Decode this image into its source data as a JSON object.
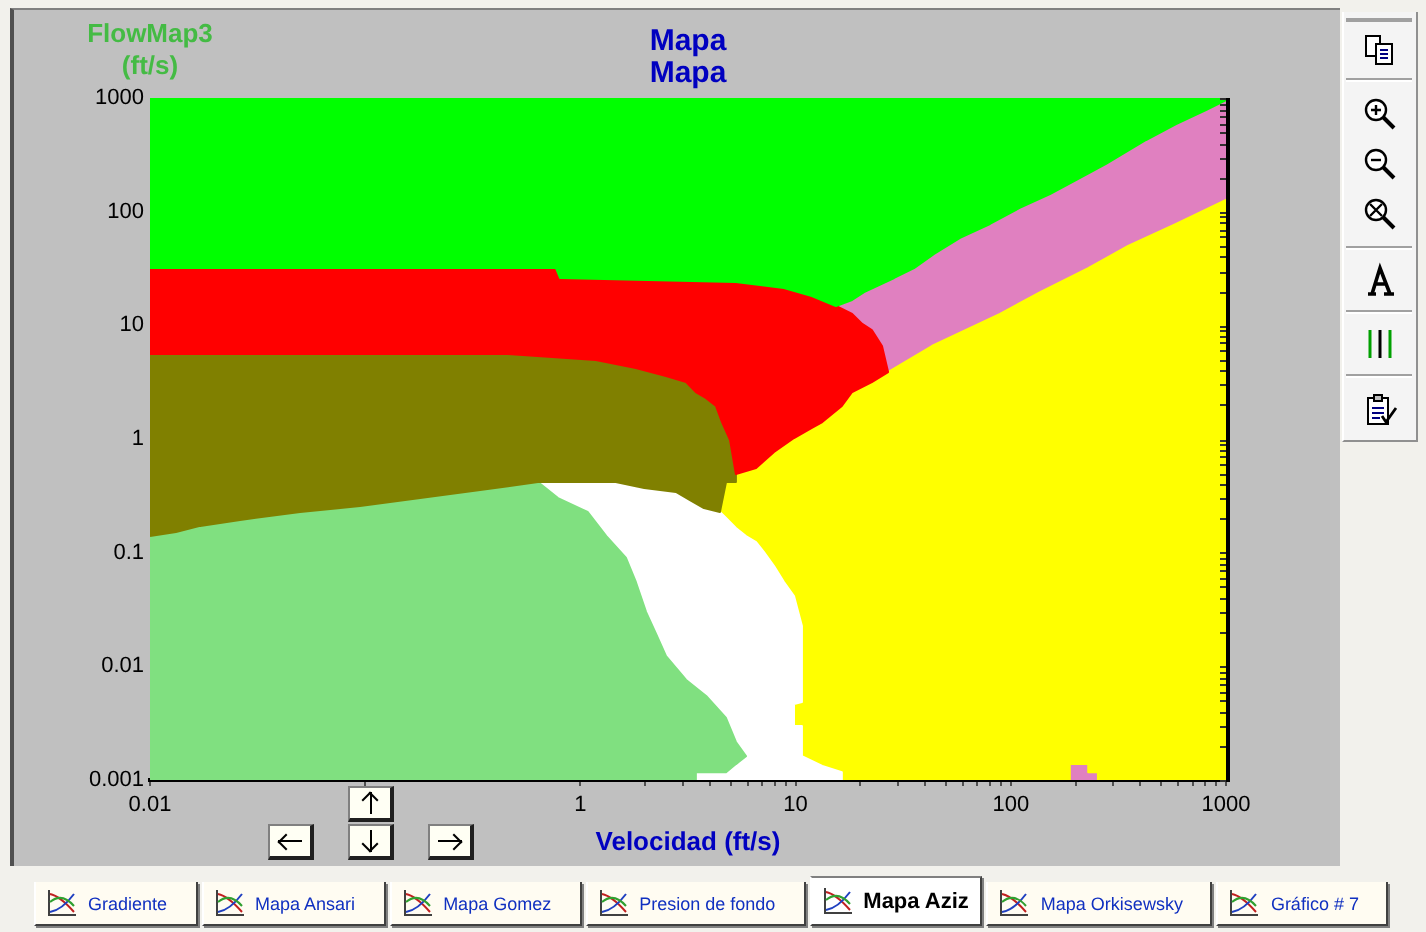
{
  "chart_data": {
    "type": "area",
    "title": "Mapa",
    "subtitle": "Mapa",
    "xlabel": "Velocidad (ft/s)",
    "ylabel": "FlowMap3 (ft/s)",
    "log": "xy",
    "xlim": [
      0.01,
      1000
    ],
    "ylim": [
      0.001,
      1000
    ],
    "xticks": [
      0.01,
      {
        "value": 0.1,
        "label": null
      },
      1,
      {
        "value": 2,
        "label": null
      },
      {
        "value": 3,
        "label": null
      },
      {
        "value": 4,
        "label": null
      },
      {
        "value": 5,
        "label": null
      },
      {
        "value": 6,
        "label": null
      },
      {
        "value": 7,
        "label": null
      },
      {
        "value": 8,
        "label": null
      },
      {
        "value": 9,
        "label": null
      },
      10,
      {
        "value": 20,
        "label": null
      },
      {
        "value": 30,
        "label": null
      },
      {
        "value": 40,
        "label": null
      },
      {
        "value": 50,
        "label": null
      },
      {
        "value": 60,
        "label": null
      },
      {
        "value": 70,
        "label": null
      },
      {
        "value": 80,
        "label": null
      },
      {
        "value": 90,
        "label": null
      },
      100,
      {
        "value": 200,
        "label": null
      },
      {
        "value": 300,
        "label": null
      },
      {
        "value": 400,
        "label": null
      },
      {
        "value": 500,
        "label": null
      },
      {
        "value": 600,
        "label": null
      },
      {
        "value": 700,
        "label": null
      },
      {
        "value": 800,
        "label": null
      },
      {
        "value": 900,
        "label": null
      },
      1000
    ],
    "yticks": [
      0.001,
      {
        "value": 0.002,
        "label": null
      },
      {
        "value": 0.003,
        "label": null
      },
      {
        "value": 0.004,
        "label": null
      },
      {
        "value": 0.005,
        "label": null
      },
      {
        "value": 0.006,
        "label": null
      },
      {
        "value": 0.007,
        "label": null
      },
      {
        "value": 0.008,
        "label": null
      },
      {
        "value": 0.009,
        "label": null
      },
      0.01,
      {
        "value": 0.02,
        "label": null
      },
      {
        "value": 0.03,
        "label": null
      },
      {
        "value": 0.04,
        "label": null
      },
      {
        "value": 0.05,
        "label": null
      },
      {
        "value": 0.06,
        "label": null
      },
      {
        "value": 0.07,
        "label": null
      },
      {
        "value": 0.08,
        "label": null
      },
      {
        "value": 0.09,
        "label": null
      },
      0.1,
      {
        "value": 0.2,
        "label": null
      },
      {
        "value": 0.3,
        "label": null
      },
      {
        "value": 0.4,
        "label": null
      },
      {
        "value": 0.5,
        "label": null
      },
      {
        "value": 0.6,
        "label": null
      },
      {
        "value": 0.7,
        "label": null
      },
      {
        "value": 0.8,
        "label": null
      },
      {
        "value": 0.9,
        "label": null
      },
      1,
      {
        "value": 2,
        "label": null
      },
      {
        "value": 3,
        "label": null
      },
      {
        "value": 4,
        "label": null
      },
      {
        "value": 5,
        "label": null
      },
      {
        "value": 6,
        "label": null
      },
      {
        "value": 7,
        "label": null
      },
      {
        "value": 8,
        "label": null
      },
      {
        "value": 9,
        "label": null
      },
      10,
      {
        "value": 20,
        "label": null
      },
      {
        "value": 30,
        "label": null
      },
      {
        "value": 40,
        "label": null
      },
      {
        "value": 50,
        "label": null
      },
      {
        "value": 60,
        "label": null
      },
      {
        "value": 70,
        "label": null
      },
      {
        "value": 80,
        "label": null
      },
      {
        "value": 90,
        "label": null
      },
      100,
      {
        "value": 200,
        "label": null
      },
      {
        "value": 300,
        "label": null
      },
      {
        "value": 400,
        "label": null
      },
      {
        "value": 500,
        "label": null
      },
      {
        "value": 600,
        "label": null
      },
      {
        "value": 700,
        "label": null
      },
      {
        "value": 800,
        "label": null
      },
      {
        "value": 900,
        "label": null
      },
      1000
    ],
    "series": [
      {
        "color": "#00ff00",
        "x": [
          0.01,
          1000,
          1000,
          807,
          586,
          425,
          277,
          210,
          152,
          110,
          80,
          58.1,
          44,
          35.5,
          28.7,
          20.8,
          18.3,
          15.4,
          11.9,
          8.83,
          5.28,
          0.804,
          0.77,
          0.01
        ],
        "values": [
          1000,
          1000,
          960,
          784,
          590,
          427,
          263,
          198,
          143,
          108,
          77.9,
          58.7,
          42.4,
          31.9,
          26.1,
          19.6,
          16.7,
          14.8,
          18.1,
          21.3,
          24.0,
          26.1,
          31.9,
          31.9
        ]
      },
      {
        "color": "#ff0000",
        "x": [
          0.01,
          0.77,
          0.804,
          5.28,
          8.83,
          11.9,
          15.4,
          18.3,
          20.4,
          22.6,
          25.2,
          26.9,
          22.6,
          18.3,
          16.4,
          13.3,
          11.9,
          9.83,
          7.94,
          6.55,
          5.28,
          4.96,
          4.55,
          4.27,
          3.84,
          3.44,
          3.1,
          2.5,
          1.81,
          1.18,
          0.461,
          0.01
        ],
        "values": [
          31.9,
          31.9,
          26.1,
          24.0,
          21.3,
          18.1,
          14.8,
          12.6,
          10.3,
          9.1,
          6.58,
          3.88,
          3.17,
          2.59,
          1.95,
          1.41,
          1.25,
          1.02,
          0.768,
          0.556,
          0.492,
          0.98,
          1.41,
          1.95,
          2.29,
          2.59,
          3.17,
          3.58,
          4.21,
          4.95,
          5.59,
          5.59
        ]
      },
      {
        "color": "#808000",
        "x": [
          0.01,
          0.461,
          1.18,
          1.81,
          2.5,
          3.1,
          3.44,
          3.84,
          4.27,
          4.55,
          4.96,
          5.28,
          5.28,
          4.75,
          4.45,
          3.75,
          3.23,
          2.78,
          1.98,
          1.46,
          0.635,
          0.342,
          0.18,
          0.0946,
          0.0498,
          0.0262,
          0.0171,
          0.0132,
          0.01
        ],
        "values": [
          5.59,
          5.59,
          4.95,
          4.21,
          3.58,
          3.17,
          2.59,
          2.29,
          1.95,
          1.41,
          0.98,
          0.492,
          0.418,
          0.418,
          0.228,
          0.247,
          0.29,
          0.342,
          0.37,
          0.418,
          0.418,
          0.356,
          0.302,
          0.257,
          0.228,
          0.194,
          0.172,
          0.152,
          0.14
        ]
      },
      {
        "color": "#80e080",
        "x": [
          0.01,
          0.01,
          0.0132,
          0.0171,
          0.0262,
          0.0498,
          0.0946,
          0.18,
          0.342,
          0.635,
          0.787,
          1.08,
          1.32,
          1.63,
          1.81,
          2.02,
          2.25,
          2.5,
          3.1,
          3.84,
          4.75,
          5.28,
          5.88,
          5.28,
          4.75,
          3.44,
          3.44
        ],
        "values": [
          0.001,
          0.14,
          0.152,
          0.172,
          0.194,
          0.228,
          0.257,
          0.302,
          0.356,
          0.418,
          0.302,
          0.228,
          0.14,
          0.0897,
          0.0552,
          0.03,
          0.0192,
          0.0123,
          0.00758,
          0.00548,
          0.00351,
          0.00216,
          0.00162,
          0.00138,
          0.00117,
          0.00117,
          0.001
        ]
      },
      {
        "color": "#ffffff",
        "x": [
          0.635,
          0.787,
          1.08,
          1.32,
          1.63,
          1.81,
          2.02,
          2.25,
          2.5,
          3.1,
          3.84,
          4.75,
          5.28,
          5.88,
          5.28,
          4.75,
          3.44,
          3.44,
          16.4,
          16.4,
          13.3,
          10.7,
          10.7,
          9.83,
          9.83,
          10.7,
          10.7,
          9.83,
          8.83,
          7.94,
          7.13,
          6.55,
          5.88,
          5.28,
          4.75,
          4.45,
          3.75,
          3.23,
          2.78,
          1.98,
          1.46
        ],
        "values": [
          0.418,
          0.302,
          0.228,
          0.14,
          0.0897,
          0.0552,
          0.03,
          0.0192,
          0.0123,
          0.00758,
          0.00548,
          0.00351,
          0.00216,
          0.00162,
          0.00138,
          0.00117,
          0.00117,
          0.001,
          0.001,
          0.00117,
          0.00133,
          0.00162,
          0.00298,
          0.00298,
          0.00466,
          0.00485,
          0.0226,
          0.0416,
          0.0552,
          0.0763,
          0.101,
          0.124,
          0.14,
          0.165,
          0.202,
          0.228,
          0.247,
          0.29,
          0.342,
          0.37,
          0.418
        ]
      },
      {
        "color": "#ffff00",
        "x": [
          16.4,
          188,
          188,
          229,
          229,
          254,
          254,
          1000,
          1000,
          586,
          351,
          229,
          137,
          89.1,
          43.0,
          26.9,
          22.6,
          18.3,
          16.4,
          13.3,
          11.9,
          9.83,
          7.94,
          6.55,
          5.28,
          5.28,
          4.75,
          4.45,
          4.75,
          5.28,
          5.88,
          6.55,
          7.13,
          7.94,
          8.83,
          9.83,
          10.7,
          10.7,
          9.83,
          9.83,
          10.7,
          10.7,
          13.3,
          16.4
        ],
        "values": [
          0.001,
          0.001,
          0.00138,
          0.00138,
          0.00117,
          0.00117,
          0.001,
          0.001,
          127,
          77.9,
          49.9,
          31.9,
          19.6,
          12.6,
          6.58,
          3.88,
          3.17,
          2.59,
          1.95,
          1.41,
          1.25,
          1.02,
          0.768,
          0.556,
          0.492,
          0.418,
          0.418,
          0.228,
          0.202,
          0.165,
          0.14,
          0.124,
          0.101,
          0.0763,
          0.0552,
          0.0416,
          0.0226,
          0.00485,
          0.00466,
          0.00298,
          0.00298,
          0.00162,
          0.00133,
          0.00117
        ]
      },
      {
        "color": "#e080c0",
        "x": [
          15.4,
          18.3,
          20.8,
          28.7,
          35.5,
          44,
          58.1,
          80,
          110,
          152,
          210,
          277,
          425,
          586,
          807,
          1000,
          1000,
          586,
          351,
          229,
          137,
          89.1,
          43.0,
          26.9,
          25.2,
          22.6,
          20.4,
          18.3,
          null,
          188,
          188,
          229,
          229,
          254,
          254
        ],
        "values": [
          14.8,
          16.7,
          19.6,
          26.1,
          31.9,
          42.4,
          58.7,
          77.9,
          108,
          143,
          198,
          263,
          427,
          590,
          784,
          960,
          127,
          77.9,
          49.9,
          31.9,
          19.6,
          12.6,
          6.58,
          3.88,
          6.58,
          9.1,
          10.3,
          12.6,
          null,
          0.001,
          0.00138,
          0.00138,
          0.00117,
          0.00117,
          0.001
        ]
      }
    ],
    "annotations": [
      "Gradiente",
      "Mapa Ansari",
      "Mapa Gomez",
      "Presion de fondo",
      "Mapa Aziz",
      "Mapa Orkisewsky",
      "Gráfico # 7"
    ]
  }
}
